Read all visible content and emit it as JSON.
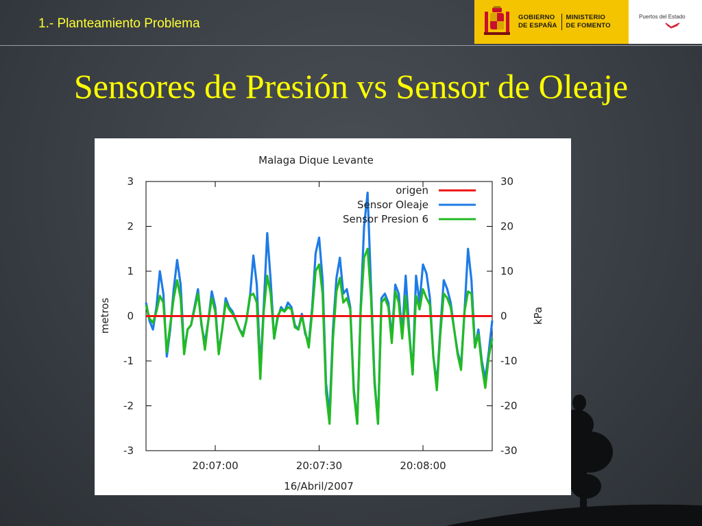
{
  "header": {
    "section_label": "1.- Planteamiento Problema",
    "gov_line1": "GOBIERNO",
    "gov_line2": "DE ESPAÑA",
    "min_line1": "MINISTERIO",
    "min_line2": "DE FOMENTO",
    "puertos": "Puertos del Estado"
  },
  "slide_title": "Sensores de Presión vs Sensor de Oleaje",
  "colors": {
    "title_yellow": "#ffff00",
    "gov_yellow": "#f5c400",
    "origen": "#ee1111",
    "oleaje": "#1e7be6",
    "presion": "#22bb22"
  },
  "chart_data": {
    "type": "line",
    "title": "Malaga Dique Levante",
    "xlabel": "16/Abril/2007",
    "ylabel": "metros",
    "y2label": "kPa",
    "xlim": [
      0,
      100
    ],
    "ylim": [
      -3,
      3
    ],
    "y2lim": [
      -30,
      30
    ],
    "xticks": [
      {
        "x": 20,
        "label": "20:07:00"
      },
      {
        "x": 50,
        "label": "20:07:30"
      },
      {
        "x": 80,
        "label": "20:08:00"
      }
    ],
    "yticks": [
      3,
      2,
      1,
      0,
      -1,
      -2,
      -3
    ],
    "y2ticks": [
      30,
      20,
      10,
      0,
      -10,
      -20,
      -30
    ],
    "legend_position": "top-right",
    "grid": false,
    "series": [
      {
        "name": "origen",
        "color": "#ee1111",
        "x": [
          0,
          100
        ],
        "y": [
          0,
          0
        ]
      },
      {
        "name": "Sensor Oleaje",
        "color": "#1e7be6",
        "x": [
          0,
          1,
          2,
          3,
          4,
          5,
          6,
          7,
          8,
          9,
          10,
          11,
          12,
          13,
          14,
          15,
          16,
          17,
          18,
          19,
          20,
          21,
          22,
          23,
          24,
          25,
          26,
          27,
          28,
          29,
          30,
          31,
          32,
          33,
          34,
          35,
          36,
          37,
          38,
          39,
          40,
          41,
          42,
          43,
          44,
          45,
          46,
          47,
          48,
          49,
          50,
          51,
          52,
          53,
          54,
          55,
          56,
          57,
          58,
          59,
          60,
          61,
          62,
          63,
          64,
          65,
          66,
          67,
          68,
          69,
          70,
          71,
          72,
          73,
          74,
          75,
          76,
          77,
          78,
          79,
          80,
          81,
          82,
          83,
          84,
          85,
          86,
          87,
          88,
          89,
          90,
          91,
          92,
          93,
          94,
          95,
          96,
          97,
          98,
          99,
          100
        ],
        "y": [
          0.3,
          -0.1,
          -0.3,
          0.2,
          1.0,
          0.5,
          -0.9,
          -0.3,
          0.6,
          1.25,
          0.7,
          -0.8,
          -0.3,
          -0.2,
          0.2,
          0.6,
          -0.2,
          -0.6,
          -0.1,
          0.55,
          0.2,
          -0.8,
          -0.3,
          0.4,
          0.2,
          0.1,
          -0.1,
          -0.3,
          -0.4,
          -0.1,
          0.4,
          1.35,
          0.7,
          -1.2,
          0.2,
          1.85,
          0.8,
          -0.5,
          -0.05,
          0.2,
          0.1,
          0.3,
          0.2,
          -0.2,
          -0.3,
          0.05,
          -0.4,
          -0.6,
          0.2,
          1.4,
          1.75,
          0.8,
          -1.5,
          -2.2,
          -0.3,
          0.85,
          1.3,
          0.5,
          0.6,
          0.2,
          -1.6,
          -2.4,
          0.2,
          2.0,
          2.75,
          0.6,
          -1.4,
          -2.4,
          0.4,
          0.5,
          0.3,
          -0.5,
          0.7,
          0.5,
          -0.4,
          0.9,
          -0.3,
          -1.3,
          0.9,
          0.3,
          1.15,
          0.95,
          0.4,
          -0.9,
          -1.5,
          -0.3,
          0.8,
          0.6,
          0.3,
          -0.3,
          -0.8,
          -1.1,
          0.1,
          1.5,
          0.8,
          -0.7,
          -0.3,
          -1.0,
          -1.4,
          -0.8,
          -0.1
        ]
      },
      {
        "name": "Sensor Presion 6",
        "color": "#22bb22",
        "x": [
          0,
          1,
          2,
          3,
          4,
          5,
          6,
          7,
          8,
          9,
          10,
          11,
          12,
          13,
          14,
          15,
          16,
          17,
          18,
          19,
          20,
          21,
          22,
          23,
          24,
          25,
          26,
          27,
          28,
          29,
          30,
          31,
          32,
          33,
          34,
          35,
          36,
          37,
          38,
          39,
          40,
          41,
          42,
          43,
          44,
          45,
          46,
          47,
          48,
          49,
          50,
          51,
          52,
          53,
          54,
          55,
          56,
          57,
          58,
          59,
          60,
          61,
          62,
          63,
          64,
          65,
          66,
          67,
          68,
          69,
          70,
          71,
          72,
          73,
          74,
          75,
          76,
          77,
          78,
          79,
          80,
          81,
          82,
          83,
          84,
          85,
          86,
          87,
          88,
          89,
          90,
          91,
          92,
          93,
          94,
          95,
          96,
          97,
          98,
          99,
          100
        ],
        "y": [
          0.25,
          -0.05,
          -0.15,
          0.1,
          0.45,
          0.3,
          -0.8,
          -0.2,
          0.4,
          0.8,
          0.4,
          -0.85,
          -0.3,
          -0.2,
          0.15,
          0.5,
          -0.15,
          -0.75,
          -0.1,
          0.4,
          0.1,
          -0.85,
          -0.3,
          0.3,
          0.15,
          0.05,
          -0.1,
          -0.3,
          -0.45,
          -0.1,
          0.45,
          0.5,
          0.3,
          -1.4,
          0.1,
          0.9,
          0.5,
          -0.5,
          0.0,
          0.15,
          0.1,
          0.2,
          0.15,
          -0.25,
          -0.3,
          0.0,
          -0.35,
          -0.7,
          0.1,
          1.0,
          1.15,
          0.5,
          -1.7,
          -2.4,
          -0.5,
          0.55,
          0.85,
          0.3,
          0.4,
          0.15,
          -1.7,
          -2.4,
          0.1,
          1.3,
          1.5,
          0.4,
          -1.5,
          -2.4,
          0.3,
          0.4,
          0.2,
          -0.6,
          0.55,
          0.3,
          -0.5,
          0.45,
          -0.4,
          -1.3,
          0.45,
          0.15,
          0.6,
          0.4,
          0.25,
          -0.9,
          -1.65,
          -0.4,
          0.5,
          0.4,
          0.2,
          -0.3,
          -0.85,
          -1.2,
          0.1,
          0.55,
          0.5,
          -0.7,
          -0.4,
          -1.1,
          -1.6,
          -0.9,
          -0.5
        ]
      }
    ]
  }
}
